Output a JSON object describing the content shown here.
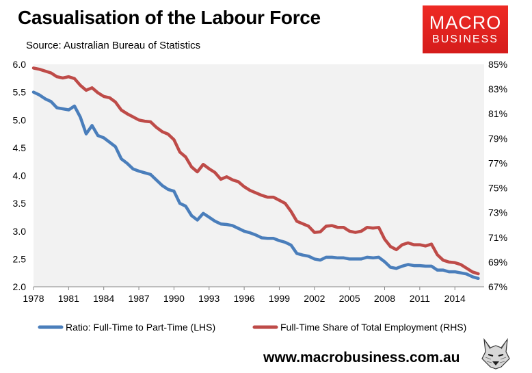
{
  "header": {
    "title": "Casualisation of the Labour Force",
    "subtitle": "Source: Australian Bureau of Statistics"
  },
  "logo": {
    "line1": "MACRO",
    "line2": "BUSINESS"
  },
  "footer": {
    "website": "www.macrobusiness.com.au",
    "mascot_icon": "wolf-head-icon"
  },
  "colors": {
    "lhs_series": "#4a7ebb",
    "rhs_series": "#be4b48",
    "plot_bg": "#f2f2f2",
    "logo_bg": "#e8231f"
  },
  "chart_data": {
    "type": "line",
    "title": "Casualisation of the Labour Force",
    "x_ticks": [
      "1978",
      "1981",
      "1984",
      "1987",
      "1990",
      "1993",
      "1996",
      "1999",
      "2002",
      "2005",
      "2008",
      "2011",
      "2014"
    ],
    "xlim": [
      1978,
      2016.5
    ],
    "y_left": {
      "ylim": [
        2.0,
        6.0
      ],
      "ticks": [
        "2.0",
        "2.5",
        "3.0",
        "3.5",
        "4.0",
        "4.5",
        "5.0",
        "5.5",
        "6.0"
      ]
    },
    "y_right": {
      "ylim": [
        67,
        85
      ],
      "ticks": [
        "67%",
        "69%",
        "71%",
        "73%",
        "75%",
        "77%",
        "79%",
        "81%",
        "83%",
        "85%"
      ]
    },
    "grid": false,
    "legend_position": "bottom",
    "series": [
      {
        "name": "Ratio: Full-Time to Part-Time (LHS)",
        "axis": "left",
        "x": [
          1978,
          1978.5,
          1979,
          1979.5,
          1980,
          1980.5,
          1981,
          1981.5,
          1982,
          1982.5,
          1983,
          1983.5,
          1984,
          1984.5,
          1985,
          1985.5,
          1986,
          1986.5,
          1987,
          1987.5,
          1988,
          1988.5,
          1989,
          1989.5,
          1990,
          1990.5,
          1991,
          1991.5,
          1992,
          1992.5,
          1993,
          1993.5,
          1994,
          1994.5,
          1995,
          1995.5,
          1996,
          1996.5,
          1997,
          1997.5,
          1998,
          1998.5,
          1999,
          1999.5,
          2000,
          2000.5,
          2001,
          2001.5,
          2002,
          2002.5,
          2003,
          2003.5,
          2004,
          2004.5,
          2005,
          2005.5,
          2006,
          2006.5,
          2007,
          2007.5,
          2008,
          2008.5,
          2009,
          2009.5,
          2010,
          2010.5,
          2011,
          2011.5,
          2012,
          2012.5,
          2013,
          2013.5,
          2014,
          2014.5,
          2015,
          2015.5,
          2016
        ],
        "values": [
          5.5,
          5.45,
          5.38,
          5.33,
          5.22,
          5.2,
          5.18,
          5.25,
          5.05,
          4.75,
          4.9,
          4.72,
          4.68,
          4.6,
          4.52,
          4.3,
          4.22,
          4.12,
          4.08,
          4.05,
          4.02,
          3.92,
          3.82,
          3.75,
          3.72,
          3.5,
          3.45,
          3.28,
          3.2,
          3.32,
          3.25,
          3.18,
          3.13,
          3.12,
          3.1,
          3.05,
          3.0,
          2.97,
          2.93,
          2.88,
          2.87,
          2.87,
          2.83,
          2.8,
          2.75,
          2.6,
          2.57,
          2.55,
          2.5,
          2.48,
          2.53,
          2.53,
          2.52,
          2.52,
          2.5,
          2.5,
          2.5,
          2.53,
          2.52,
          2.53,
          2.45,
          2.35,
          2.33,
          2.37,
          2.4,
          2.38,
          2.38,
          2.37,
          2.37,
          2.3,
          2.3,
          2.27,
          2.27,
          2.25,
          2.23,
          2.18,
          2.15
        ]
      },
      {
        "name": "Full-Time Share of Total Employment (RHS)",
        "axis": "right",
        "x": [
          1978,
          1978.5,
          1979,
          1979.5,
          1980,
          1980.5,
          1981,
          1981.5,
          1982,
          1982.5,
          1983,
          1983.5,
          1984,
          1984.5,
          1985,
          1985.5,
          1986,
          1986.5,
          1987,
          1987.5,
          1988,
          1988.5,
          1989,
          1989.5,
          1990,
          1990.5,
          1991,
          1991.5,
          1992,
          1992.5,
          1993,
          1993.5,
          1994,
          1994.5,
          1995,
          1995.5,
          1996,
          1996.5,
          1997,
          1997.5,
          1998,
          1998.5,
          1999,
          1999.5,
          2000,
          2000.5,
          2001,
          2001.5,
          2002,
          2002.5,
          2003,
          2003.5,
          2004,
          2004.5,
          2005,
          2005.5,
          2006,
          2006.5,
          2007,
          2007.5,
          2008,
          2008.5,
          2009,
          2009.5,
          2010,
          2010.5,
          2011,
          2011.5,
          2012,
          2012.5,
          2013,
          2013.5,
          2014,
          2014.5,
          2015,
          2015.5,
          2016
        ],
        "values": [
          84.7,
          84.6,
          84.45,
          84.3,
          84.0,
          83.9,
          84.0,
          83.85,
          83.3,
          82.9,
          83.1,
          82.7,
          82.4,
          82.3,
          81.95,
          81.3,
          81.0,
          80.75,
          80.5,
          80.4,
          80.35,
          79.9,
          79.55,
          79.35,
          78.9,
          77.9,
          77.5,
          76.7,
          76.3,
          76.9,
          76.55,
          76.25,
          75.7,
          75.9,
          75.65,
          75.5,
          75.1,
          74.8,
          74.6,
          74.4,
          74.25,
          74.25,
          74.0,
          73.75,
          73.1,
          72.3,
          72.1,
          71.9,
          71.4,
          71.45,
          71.9,
          71.95,
          71.8,
          71.8,
          71.5,
          71.4,
          71.5,
          71.8,
          71.75,
          71.8,
          70.85,
          70.25,
          70.0,
          70.4,
          70.55,
          70.4,
          70.4,
          70.3,
          70.45,
          69.6,
          69.15,
          69.0,
          68.95,
          68.8,
          68.5,
          68.2,
          68.05
        ]
      }
    ]
  }
}
